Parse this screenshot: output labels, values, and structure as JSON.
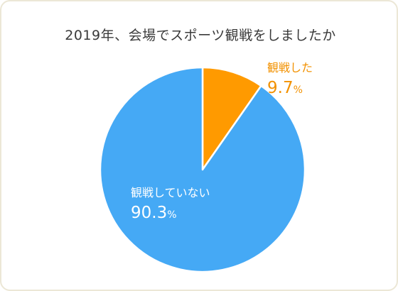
{
  "chart_data": {
    "type": "pie",
    "title": "2019年、会場でスポーツ観戦をしましたか",
    "slices": [
      {
        "label": "観戦した",
        "value": 9.7,
        "display": "9.7",
        "unit": "%",
        "color": "#ff9a00",
        "label_color": "#f29100",
        "label_position": "outside-right"
      },
      {
        "label": "観戦していない",
        "value": 90.3,
        "display": "90.3",
        "unit": "%",
        "color": "#45a9f5",
        "label_color": "#ffffff",
        "label_position": "inside-left"
      }
    ],
    "start_angle": "12 o'clock",
    "direction": "clockwise",
    "legend": "none"
  }
}
